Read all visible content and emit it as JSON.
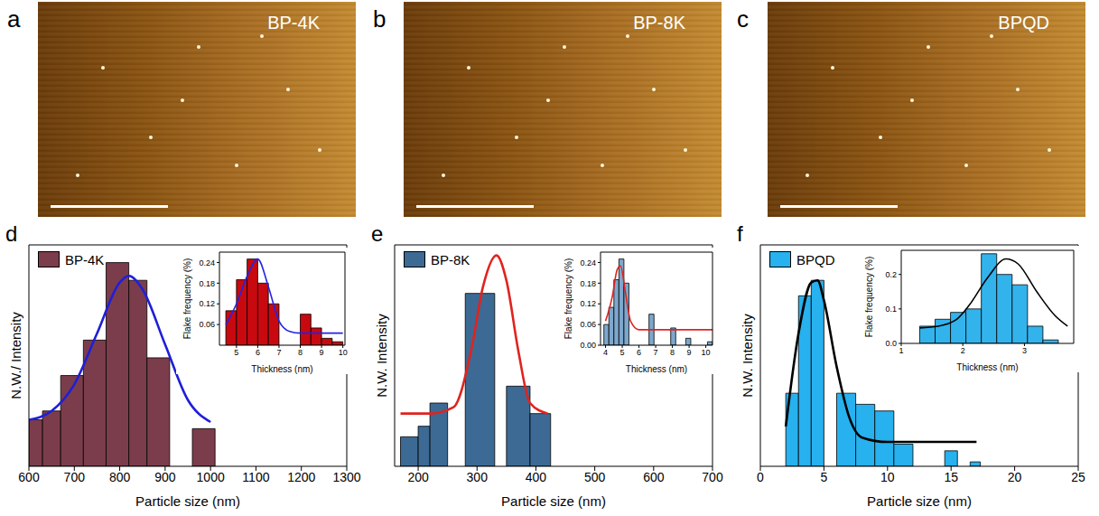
{
  "images": [
    {
      "panel": "a",
      "label": "BP-4K"
    },
    {
      "panel": "b",
      "label": "BP-8K"
    },
    {
      "panel": "c",
      "label": "BPQD"
    }
  ],
  "chart_data": [
    {
      "panel": "d",
      "type": "histogram",
      "xlabel": "Particle size (nm)",
      "ylabel": "N.W./ Intensity",
      "xlim": [
        600,
        1300
      ],
      "xticks": [
        600,
        700,
        800,
        900,
        1000,
        1100,
        1200,
        1300
      ],
      "ylim": [
        0,
        1
      ],
      "tick_labels": "x",
      "legend": "upper left",
      "series": [
        {
          "name": "BP-4K",
          "type": "bar",
          "color": "#7b3d4b",
          "bins": [
            600,
            630,
            670,
            720,
            770,
            820,
            860,
            910,
            960,
            1010
          ],
          "counts": [
            0.21,
            0.25,
            0.41,
            0.57,
            0.92,
            0.84,
            0.49,
            0,
            0.17
          ]
        },
        {
          "type": "line",
          "color": "#1f1fd8",
          "x": [
            600,
            650,
            700,
            750,
            800,
            820,
            850,
            900,
            950,
            1000
          ],
          "values": [
            0.21,
            0.25,
            0.37,
            0.6,
            0.83,
            0.86,
            0.8,
            0.55,
            0.3,
            0.2
          ]
        }
      ],
      "inset": {
        "type": "histogram",
        "xlabel": "Thickness (nm)",
        "ylabel": "Flake frequency (%)",
        "xlim": [
          4.2,
          10.1
        ],
        "xticks": [
          5,
          6,
          7,
          8,
          9,
          10
        ],
        "ylim": [
          0,
          0.27
        ],
        "yticks": [
          0.06,
          0.12,
          0.18,
          0.24
        ],
        "series": [
          {
            "type": "bar",
            "color": "#c8090f",
            "bins": [
              4.5,
              5.0,
              5.5,
              6.0,
              6.5,
              7.0,
              7.5,
              8.0,
              8.5,
              9.0,
              9.5,
              10.0
            ],
            "counts": [
              0.1,
              0.19,
              0.25,
              0.18,
              0.12,
              0,
              0,
              0.09,
              0.05,
              0.02,
              0.01
            ]
          },
          {
            "type": "line",
            "color": "#2323e6",
            "x": [
              4.5,
              5,
              5.5,
              6,
              6.5,
              7,
              7.5,
              8,
              9,
              10
            ],
            "values": [
              0.06,
              0.12,
              0.2,
              0.25,
              0.17,
              0.07,
              0.04,
              0.035,
              0.035,
              0.035
            ]
          }
        ]
      }
    },
    {
      "panel": "e",
      "type": "histogram",
      "xlabel": "Particle size (nm)",
      "ylabel": "N.W. Intensity",
      "xlim": [
        160,
        700
      ],
      "xticks": [
        200,
        300,
        400,
        500,
        600,
        700
      ],
      "ylim": [
        0,
        1.05
      ],
      "tick_labels": "x",
      "legend": "upper left",
      "series": [
        {
          "name": "BP-8K",
          "type": "bar",
          "color": "#3c6a94",
          "bins": [
            170,
            200,
            220,
            250,
            280,
            330,
            350,
            390,
            425
          ],
          "counts": [
            0.14,
            0.19,
            0.3,
            0,
            0.82,
            0,
            0.38,
            0.25
          ]
        },
        {
          "type": "line",
          "color": "#e0231f",
          "x": [
            170,
            220,
            260,
            290,
            310,
            333,
            350,
            370,
            390,
            420
          ],
          "values": [
            0.25,
            0.25,
            0.28,
            0.55,
            0.85,
            1.0,
            0.88,
            0.55,
            0.3,
            0.25
          ]
        }
      ],
      "inset": {
        "type": "histogram",
        "xlabel": "Thickness (nm)",
        "ylabel": "Flake frequency (%)",
        "xlim": [
          3.7,
          10.4
        ],
        "xticks": [
          4,
          5,
          6,
          7,
          8,
          9,
          10
        ],
        "ylim": [
          0,
          0.27
        ],
        "yticks": [
          {
            "value": 0,
            "label": "0.00"
          },
          0.06,
          0.12,
          0.18,
          0.24
        ],
        "series": [
          {
            "type": "bar",
            "color": "#7ea7cc",
            "bins": [
              3.9,
              4.2,
              4.5,
              4.8,
              5.1,
              5.4,
              6.6,
              6.9,
              7.9,
              8.2,
              8.8,
              9.1,
              10.1,
              10.4
            ],
            "counts": [
              0.06,
              0.11,
              0.19,
              0.25,
              0.18,
              0,
              0.09,
              0,
              0.05,
              0,
              0.02,
              0,
              0.01
            ]
          },
          {
            "type": "line",
            "color": "#e0231f",
            "x": [
              4,
              4.4,
              4.7,
              4.9,
              5.2,
              5.5,
              6,
              7,
              8,
              10.4
            ],
            "values": [
              0.07,
              0.14,
              0.22,
              0.23,
              0.15,
              0.07,
              0.045,
              0.045,
              0.045,
              0.045
            ]
          }
        ]
      }
    },
    {
      "panel": "f",
      "type": "histogram",
      "xlabel": "Particle size (nm)",
      "ylabel": "N.W. Intensity",
      "xlim": [
        0,
        25
      ],
      "xticks": [
        0,
        5,
        10,
        15,
        20,
        25
      ],
      "ylim": [
        0,
        1
      ],
      "tick_labels": "x",
      "legend": "upper left",
      "series": [
        {
          "name": "BPQD",
          "type": "bar",
          "color": "#27b1ee",
          "bins": [
            2,
            3,
            4,
            5,
            6,
            7.5,
            9,
            10.5,
            12,
            14.5,
            15.5,
            16.5,
            17.3
          ],
          "counts": [
            0.33,
            0.77,
            0.84,
            0,
            0.33,
            0.28,
            0.25,
            0.1,
            0,
            0.07,
            0,
            0.02
          ]
        },
        {
          "type": "line",
          "color": "#000000",
          "x": [
            2,
            3,
            4,
            4.5,
            5,
            6,
            7,
            8,
            10,
            17
          ],
          "values": [
            0.18,
            0.6,
            0.83,
            0.84,
            0.75,
            0.45,
            0.22,
            0.13,
            0.11,
            0.11
          ]
        }
      ],
      "inset": {
        "type": "histogram",
        "xlabel": "Thickness (nm)",
        "ylabel": "Flake frequency (%)",
        "xlim": [
          1,
          3.8
        ],
        "xticks": [
          1,
          2,
          3
        ],
        "ylim": [
          0,
          0.27
        ],
        "yticks": [
          {
            "value": 0,
            "label": "0.0"
          },
          0.1,
          0.2
        ],
        "series": [
          {
            "type": "bar",
            "color": "#33b3ec",
            "bins": [
              1.3,
              1.55,
              1.8,
              2.05,
              2.3,
              2.55,
              2.8,
              3.05,
              3.3,
              3.55
            ],
            "counts": [
              0.05,
              0.07,
              0.09,
              0.1,
              0.26,
              0.2,
              0.17,
              0.05,
              0.01
            ]
          },
          {
            "type": "line",
            "color": "#000000",
            "x": [
              1.3,
              1.6,
              1.9,
              2.1,
              2.4,
              2.7,
              2.9,
              3.2,
              3.5,
              3.7
            ],
            "values": [
              0.045,
              0.05,
              0.07,
              0.11,
              0.19,
              0.245,
              0.23,
              0.15,
              0.08,
              0.05
            ]
          }
        ]
      }
    }
  ]
}
